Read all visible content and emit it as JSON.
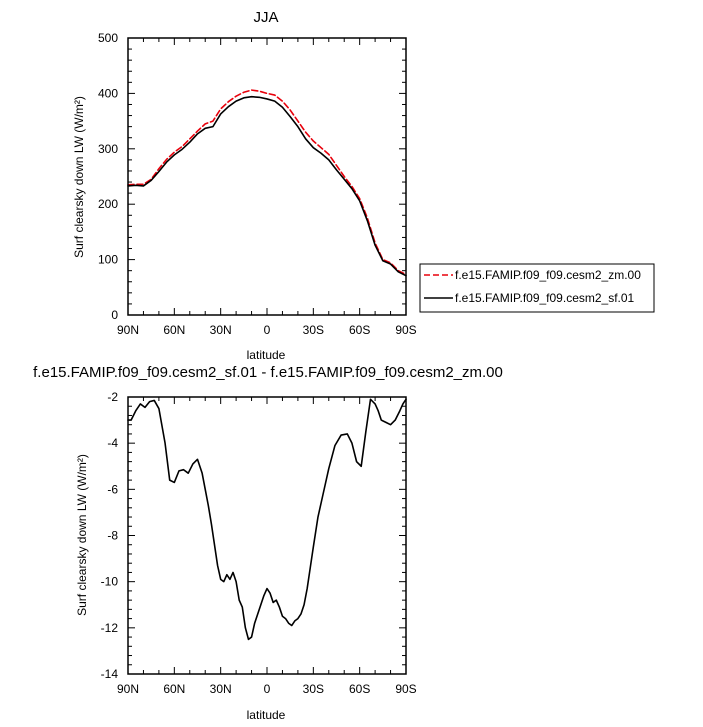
{
  "chart_data": [
    {
      "type": "line",
      "title": "JJA",
      "xlabel": "latitude",
      "ylabel": "Surf clearsky down LW (W/m²)",
      "xlim": [
        90,
        -90
      ],
      "ylim": [
        0,
        500
      ],
      "xticks": [
        90,
        60,
        30,
        0,
        -30,
        -60,
        -90
      ],
      "xtick_labels": [
        "90N",
        "60N",
        "30N",
        "0",
        "30S",
        "60S",
        "90S"
      ],
      "yticks": [
        0,
        100,
        200,
        300,
        400,
        500
      ],
      "ytick_labels": [
        "0",
        "100",
        "200",
        "300",
        "400",
        "500"
      ],
      "legend_position": "right",
      "series": [
        {
          "name": "f.e15.FAMIP.f09_f09.cesm2_zm.00",
          "color": "#e8000b",
          "dash": "dashed",
          "x": [
            90,
            85,
            80,
            75,
            70,
            65,
            60,
            55,
            50,
            45,
            40,
            35,
            30,
            25,
            20,
            15,
            10,
            5,
            0,
            -5,
            -10,
            -15,
            -20,
            -25,
            -30,
            -35,
            -40,
            -45,
            -50,
            -55,
            -60,
            -65,
            -70,
            -75,
            -80,
            -85,
            -90
          ],
          "y": [
            235,
            236,
            236,
            245,
            264,
            281,
            294,
            304,
            318,
            332,
            345,
            350,
            372,
            385,
            395,
            402,
            406,
            404,
            400,
            397,
            386,
            370,
            350,
            330,
            314,
            302,
            290,
            270,
            250,
            232,
            210,
            175,
            130,
            100,
            94,
            80,
            73
          ]
        },
        {
          "name": "f.e15.FAMIP.f09_f09.cesm2_sf.01",
          "color": "#000000",
          "dash": "solid",
          "x": [
            90,
            85,
            80,
            75,
            70,
            65,
            60,
            55,
            50,
            45,
            40,
            35,
            30,
            25,
            20,
            15,
            10,
            5,
            0,
            -5,
            -10,
            -15,
            -20,
            -25,
            -30,
            -35,
            -40,
            -45,
            -50,
            -55,
            -60,
            -65,
            -70,
            -75,
            -80,
            -85,
            -90
          ],
          "y": [
            233,
            234,
            233,
            243,
            259,
            276,
            289,
            299,
            312,
            327,
            337,
            340,
            363,
            376,
            386,
            392,
            394,
            393,
            390,
            386,
            375,
            358,
            340,
            318,
            302,
            292,
            280,
            262,
            245,
            228,
            206,
            170,
            126,
            98,
            92,
            78,
            71
          ]
        }
      ]
    },
    {
      "type": "line",
      "title": "f.e15.FAMIP.f09_f09.cesm2_sf.01 - f.e15.FAMIP.f09_f09.cesm2_zm.00",
      "xlabel": "latitude",
      "ylabel": "Surf clearsky down LW (W/m²)",
      "xlim": [
        90,
        -90
      ],
      "ylim": [
        -14,
        -2
      ],
      "xticks": [
        90,
        60,
        30,
        0,
        -30,
        -60,
        -90
      ],
      "xtick_labels": [
        "90N",
        "60N",
        "30N",
        "0",
        "30S",
        "60S",
        "90S"
      ],
      "yticks": [
        -14,
        -12,
        -10,
        -8,
        -6,
        -4,
        -2
      ],
      "ytick_labels": [
        "-14",
        "-12",
        "-10",
        "-8",
        "-6",
        "-4",
        "-2"
      ],
      "series": [
        {
          "color": "#000000",
          "dash": "solid",
          "x": [
            90,
            88,
            85,
            82,
            79,
            76,
            73,
            70,
            66,
            63,
            60,
            57,
            54,
            51,
            48,
            45,
            42,
            40,
            38,
            36,
            34,
            32,
            30,
            28,
            26,
            24,
            22,
            20,
            18,
            16,
            14,
            12,
            10,
            8,
            6,
            4,
            2,
            0,
            -2,
            -4,
            -6,
            -8,
            -10,
            -12,
            -14,
            -16,
            -18,
            -20,
            -22,
            -24,
            -26,
            -28,
            -30,
            -33,
            -36,
            -40,
            -44,
            -48,
            -52,
            -55,
            -58,
            -61,
            -64,
            -67,
            -70,
            -72,
            -74,
            -77,
            -80,
            -83,
            -86,
            -88,
            -90
          ],
          "y": [
            -3.0,
            -3.0,
            -2.6,
            -2.3,
            -2.45,
            -2.2,
            -2.15,
            -2.5,
            -4.0,
            -5.6,
            -5.7,
            -5.2,
            -5.15,
            -5.3,
            -4.9,
            -4.7,
            -5.3,
            -6.0,
            -6.7,
            -7.5,
            -8.4,
            -9.3,
            -9.9,
            -10.0,
            -9.7,
            -9.9,
            -9.6,
            -10.0,
            -10.8,
            -11.1,
            -12.0,
            -12.5,
            -12.4,
            -11.8,
            -11.4,
            -11.0,
            -10.6,
            -10.3,
            -10.5,
            -10.9,
            -10.8,
            -11.1,
            -11.5,
            -11.6,
            -11.8,
            -11.9,
            -11.7,
            -11.6,
            -11.4,
            -11.0,
            -10.3,
            -9.4,
            -8.5,
            -7.2,
            -6.3,
            -5.1,
            -4.1,
            -3.65,
            -3.6,
            -4.0,
            -4.8,
            -5.0,
            -3.5,
            -2.1,
            -2.3,
            -2.6,
            -3.0,
            -3.1,
            -3.2,
            -3.0,
            -2.6,
            -2.3,
            -2.1
          ]
        }
      ]
    }
  ]
}
